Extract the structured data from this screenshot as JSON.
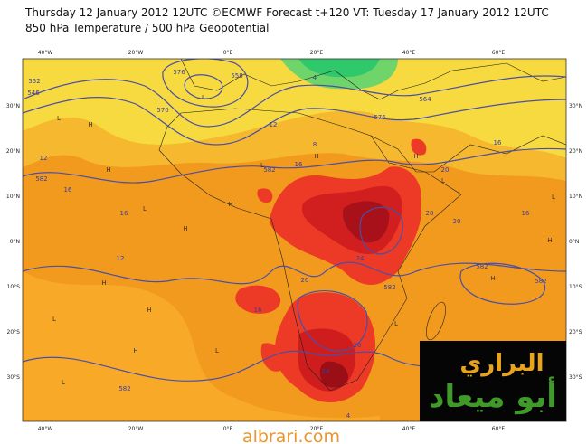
{
  "header": {
    "line1": "Thursday 12 January 2012 12UTC ©ECMWF Forecast t+120 VT: Tuesday 17 January 2012 12UTC",
    "line2": "850 hPa Temperature / 500 hPa Geopotential"
  },
  "map": {
    "lon_labels_top": [
      "40°W",
      "20°W",
      "0°E",
      "20°E",
      "40°E",
      "60°E"
    ],
    "lon_labels_bottom": [
      "40°W",
      "20°W",
      "0°E",
      "20°E",
      "40°E",
      "60°E"
    ],
    "lat_labels_left": [
      "30°N",
      "20°N",
      "10°N",
      "0°N",
      "10°S",
      "20°S",
      "30°S"
    ],
    "lat_labels_right": [
      "30°N",
      "20°N",
      "10°N",
      "0°N",
      "10°S",
      "20°S",
      "30°S"
    ],
    "contour_labels": [
      "552",
      "546",
      "558",
      "576",
      "12",
      "8",
      "4",
      "570",
      "564",
      "576",
      "582",
      "12",
      "16",
      "16",
      "20",
      "16",
      "12",
      "582",
      "16",
      "20",
      "20",
      "24",
      "20",
      "582",
      "16",
      "20",
      "24",
      "16",
      "582",
      "582",
      "582",
      "4"
    ],
    "pressure_marks": [
      "L",
      "H",
      "L",
      "H",
      "H",
      "L",
      "H",
      "L",
      "H",
      "H",
      "L",
      "H",
      "L",
      "H",
      "L",
      "H",
      "L",
      "L",
      "H",
      "H",
      "L"
    ]
  },
  "watermark": {
    "line1": "البراري",
    "line2": "أبو ميعاد"
  },
  "footer": "albrari.com"
}
